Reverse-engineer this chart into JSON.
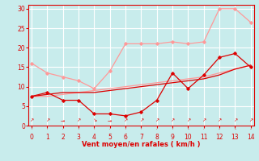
{
  "xlabel": "Vent moyen/en rafales ( km/h )",
  "bg_color": "#c8ecec",
  "line1_x": [
    0,
    1,
    2,
    3,
    4,
    5,
    6,
    7,
    8,
    9,
    10,
    11,
    12,
    13,
    14
  ],
  "line1_y": [
    7.5,
    8.5,
    6.5,
    6.5,
    3.0,
    3.0,
    2.5,
    3.5,
    6.5,
    13.5,
    9.5,
    13.0,
    17.5,
    18.5,
    15.0
  ],
  "line1_color": "#dd0000",
  "line2_x": [
    0,
    1,
    2,
    3,
    4,
    5,
    6,
    7,
    8,
    9,
    10,
    11,
    12,
    13,
    14
  ],
  "line2_y": [
    7.5,
    8.0,
    8.5,
    8.5,
    8.5,
    9.0,
    9.5,
    10.0,
    10.5,
    11.0,
    11.5,
    12.0,
    13.0,
    14.5,
    15.5
  ],
  "line2_color": "#dd0000",
  "line3_x": [
    0,
    1,
    2,
    3,
    4,
    5,
    6,
    7,
    8,
    9,
    10,
    11,
    12,
    13,
    14
  ],
  "line3_y": [
    16.0,
    13.5,
    12.5,
    11.5,
    9.5,
    14.0,
    21.0,
    21.0,
    21.0,
    21.5,
    21.0,
    21.5,
    30.0,
    30.0,
    26.5
  ],
  "line3_color": "#ff9999",
  "line4_x": [
    0,
    1,
    2,
    3,
    4,
    5,
    6,
    7,
    8,
    9,
    10,
    11,
    12,
    13,
    14
  ],
  "line4_y": [
    7.5,
    7.5,
    8.0,
    8.5,
    9.0,
    9.5,
    10.0,
    10.5,
    11.0,
    11.5,
    12.0,
    12.5,
    13.5,
    14.5,
    15.5
  ],
  "line4_color": "#ff9999",
  "ylim": [
    0,
    31
  ],
  "xlim": [
    -0.2,
    14.2
  ],
  "yticks": [
    0,
    5,
    10,
    15,
    20,
    25,
    30
  ],
  "xticks": [
    0,
    1,
    2,
    3,
    4,
    5,
    6,
    7,
    8,
    9,
    10,
    11,
    12,
    13,
    14
  ],
  "grid_color": "#ffffff",
  "axis_color": "#dd0000",
  "tick_color": "#dd0000",
  "xlabel_color": "#dd0000",
  "arrow_chars": [
    "↗",
    "↗",
    "→",
    "↗",
    "↘",
    "→",
    "↗",
    "↗",
    "↗",
    "↗",
    "↗",
    "↗",
    "↗",
    "↗",
    "↗"
  ]
}
